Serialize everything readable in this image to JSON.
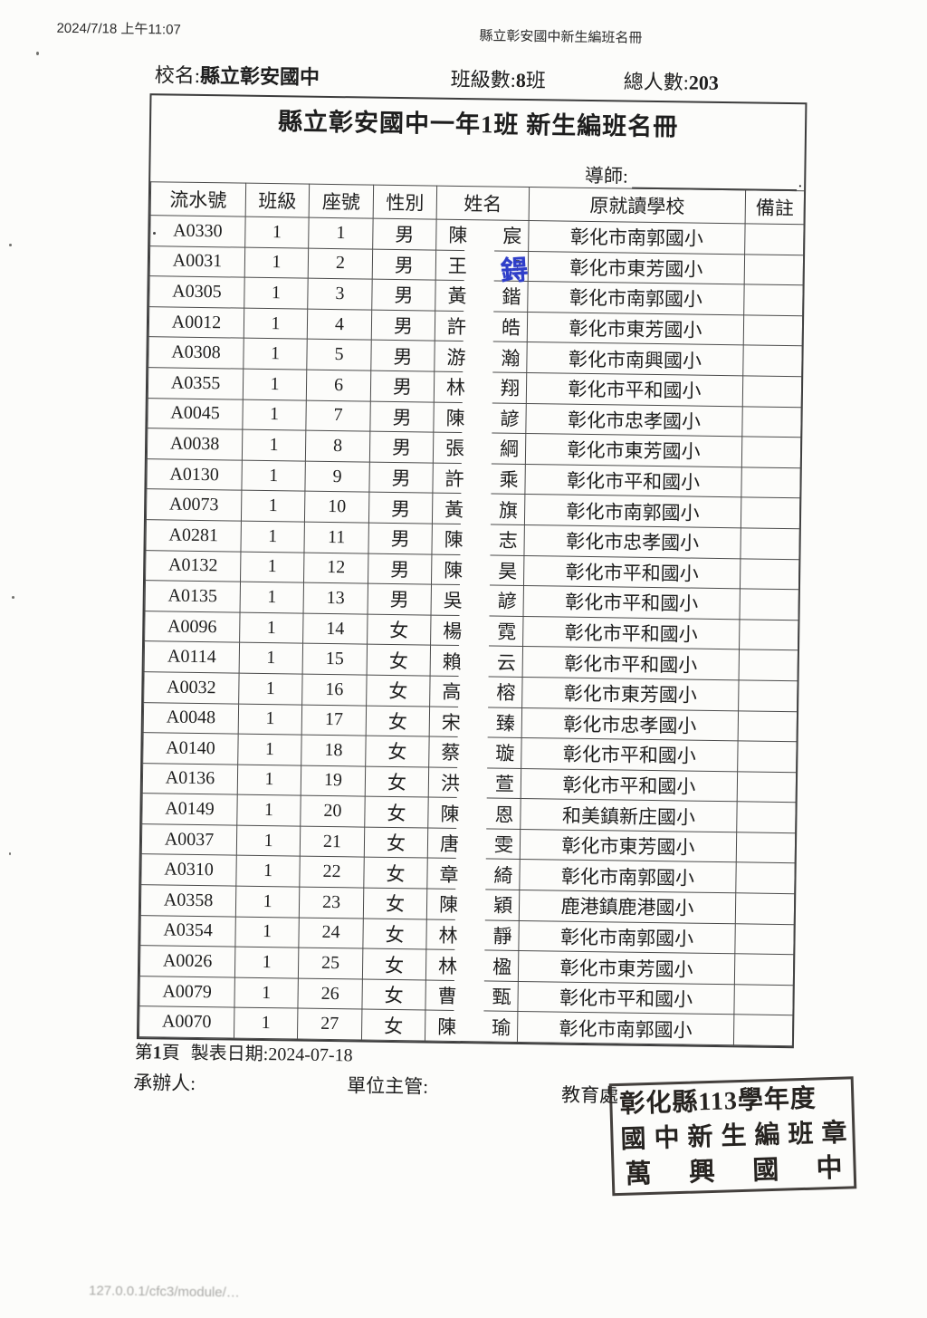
{
  "print_header": {
    "timestamp": "2024/7/18 上午11:07",
    "doc_title": "縣立彰安國中新生編班名冊"
  },
  "info": {
    "school_label": "校名:",
    "school_name": "縣立彰安國中",
    "class_count_label": "班級數:",
    "class_count_value": "8",
    "class_count_suffix": "班",
    "total_label": "總人數:",
    "total_value": "203"
  },
  "roster": {
    "title": "縣立彰安國中一年1班 新生編班名冊",
    "teacher_label": "導師:",
    "teacher_suffix": ".",
    "columns": [
      "流水號",
      "班級",
      "座號",
      "性別",
      "姓名",
      "原就讀學校",
      "備註"
    ],
    "handwritten": {
      "text": "鍀",
      "color": "#2f3ec9"
    },
    "rows": [
      {
        "serial": "A0330",
        "class": "1",
        "seat": "1",
        "gender": "男",
        "surname": "陳",
        "given": "宸",
        "school": "彰化市南郭國小",
        "remark": ""
      },
      {
        "serial": "A0031",
        "class": "1",
        "seat": "2",
        "gender": "男",
        "surname": "王",
        "given": "?",
        "school": "彰化市東芳國小",
        "remark": ""
      },
      {
        "serial": "A0305",
        "class": "1",
        "seat": "3",
        "gender": "男",
        "surname": "黃",
        "given": "鍇",
        "school": "彰化市南郭國小",
        "remark": ""
      },
      {
        "serial": "A0012",
        "class": "1",
        "seat": "4",
        "gender": "男",
        "surname": "許",
        "given": "皓",
        "school": "彰化市東芳國小",
        "remark": ""
      },
      {
        "serial": "A0308",
        "class": "1",
        "seat": "5",
        "gender": "男",
        "surname": "游",
        "given": "瀚",
        "school": "彰化市南興國小",
        "remark": ""
      },
      {
        "serial": "A0355",
        "class": "1",
        "seat": "6",
        "gender": "男",
        "surname": "林",
        "given": "翔",
        "school": "彰化市平和國小",
        "remark": ""
      },
      {
        "serial": "A0045",
        "class": "1",
        "seat": "7",
        "gender": "男",
        "surname": "陳",
        "given": "諺",
        "school": "彰化市忠孝國小",
        "remark": ""
      },
      {
        "serial": "A0038",
        "class": "1",
        "seat": "8",
        "gender": "男",
        "surname": "張",
        "given": "綱",
        "school": "彰化市東芳國小",
        "remark": ""
      },
      {
        "serial": "A0130",
        "class": "1",
        "seat": "9",
        "gender": "男",
        "surname": "許",
        "given": "乘",
        "school": "彰化市平和國小",
        "remark": ""
      },
      {
        "serial": "A0073",
        "class": "1",
        "seat": "10",
        "gender": "男",
        "surname": "黃",
        "given": "旗",
        "school": "彰化市南郭國小",
        "remark": ""
      },
      {
        "serial": "A0281",
        "class": "1",
        "seat": "11",
        "gender": "男",
        "surname": "陳",
        "given": "志",
        "school": "彰化市忠孝國小",
        "remark": ""
      },
      {
        "serial": "A0132",
        "class": "1",
        "seat": "12",
        "gender": "男",
        "surname": "陳",
        "given": "昊",
        "school": "彰化市平和國小",
        "remark": ""
      },
      {
        "serial": "A0135",
        "class": "1",
        "seat": "13",
        "gender": "男",
        "surname": "吳",
        "given": "諺",
        "school": "彰化市平和國小",
        "remark": ""
      },
      {
        "serial": "A0096",
        "class": "1",
        "seat": "14",
        "gender": "女",
        "surname": "楊",
        "given": "霓",
        "school": "彰化市平和國小",
        "remark": ""
      },
      {
        "serial": "A0114",
        "class": "1",
        "seat": "15",
        "gender": "女",
        "surname": "賴",
        "given": "云",
        "school": "彰化市平和國小",
        "remark": ""
      },
      {
        "serial": "A0032",
        "class": "1",
        "seat": "16",
        "gender": "女",
        "surname": "高",
        "given": "榕",
        "school": "彰化市東芳國小",
        "remark": ""
      },
      {
        "serial": "A0048",
        "class": "1",
        "seat": "17",
        "gender": "女",
        "surname": "宋",
        "given": "臻",
        "school": "彰化市忠孝國小",
        "remark": ""
      },
      {
        "serial": "A0140",
        "class": "1",
        "seat": "18",
        "gender": "女",
        "surname": "蔡",
        "given": "璇",
        "school": "彰化市平和國小",
        "remark": ""
      },
      {
        "serial": "A0136",
        "class": "1",
        "seat": "19",
        "gender": "女",
        "surname": "洪",
        "given": "萱",
        "school": "彰化市平和國小",
        "remark": ""
      },
      {
        "serial": "A0149",
        "class": "1",
        "seat": "20",
        "gender": "女",
        "surname": "陳",
        "given": "恩",
        "school": "和美鎮新庄國小",
        "remark": ""
      },
      {
        "serial": "A0037",
        "class": "1",
        "seat": "21",
        "gender": "女",
        "surname": "唐",
        "given": "雯",
        "school": "彰化市東芳國小",
        "remark": ""
      },
      {
        "serial": "A0310",
        "class": "1",
        "seat": "22",
        "gender": "女",
        "surname": "章",
        "given": "綺",
        "school": "彰化市南郭國小",
        "remark": ""
      },
      {
        "serial": "A0358",
        "class": "1",
        "seat": "23",
        "gender": "女",
        "surname": "陳",
        "given": "穎",
        "school": "鹿港鎮鹿港國小",
        "remark": ""
      },
      {
        "serial": "A0354",
        "class": "1",
        "seat": "24",
        "gender": "女",
        "surname": "林",
        "given": "靜",
        "school": "彰化市南郭國小",
        "remark": ""
      },
      {
        "serial": "A0026",
        "class": "1",
        "seat": "25",
        "gender": "女",
        "surname": "林",
        "given": "楹",
        "school": "彰化市東芳國小",
        "remark": ""
      },
      {
        "serial": "A0079",
        "class": "1",
        "seat": "26",
        "gender": "女",
        "surname": "曹",
        "given": "甄",
        "school": "彰化市平和國小",
        "remark": ""
      },
      {
        "serial": "A0070",
        "class": "1",
        "seat": "27",
        "gender": "女",
        "surname": "陳",
        "given": "瑜",
        "school": "彰化市南郭國小",
        "remark": ""
      }
    ]
  },
  "footer": {
    "page_prefix": "第",
    "page_num": "1",
    "page_suffix": "頁",
    "date_text": "製表日期:2024-07-18",
    "staff_label": "承辦人:",
    "supervisor_label": "單位主管:",
    "department_label": "教育處"
  },
  "stamp": {
    "line1": "彰化縣113學年度",
    "line2": "國中新生編班章",
    "line3": "萬興國中"
  },
  "page_bottom": {
    "url_text": "127.0.0.1/cfc3/module/…"
  }
}
